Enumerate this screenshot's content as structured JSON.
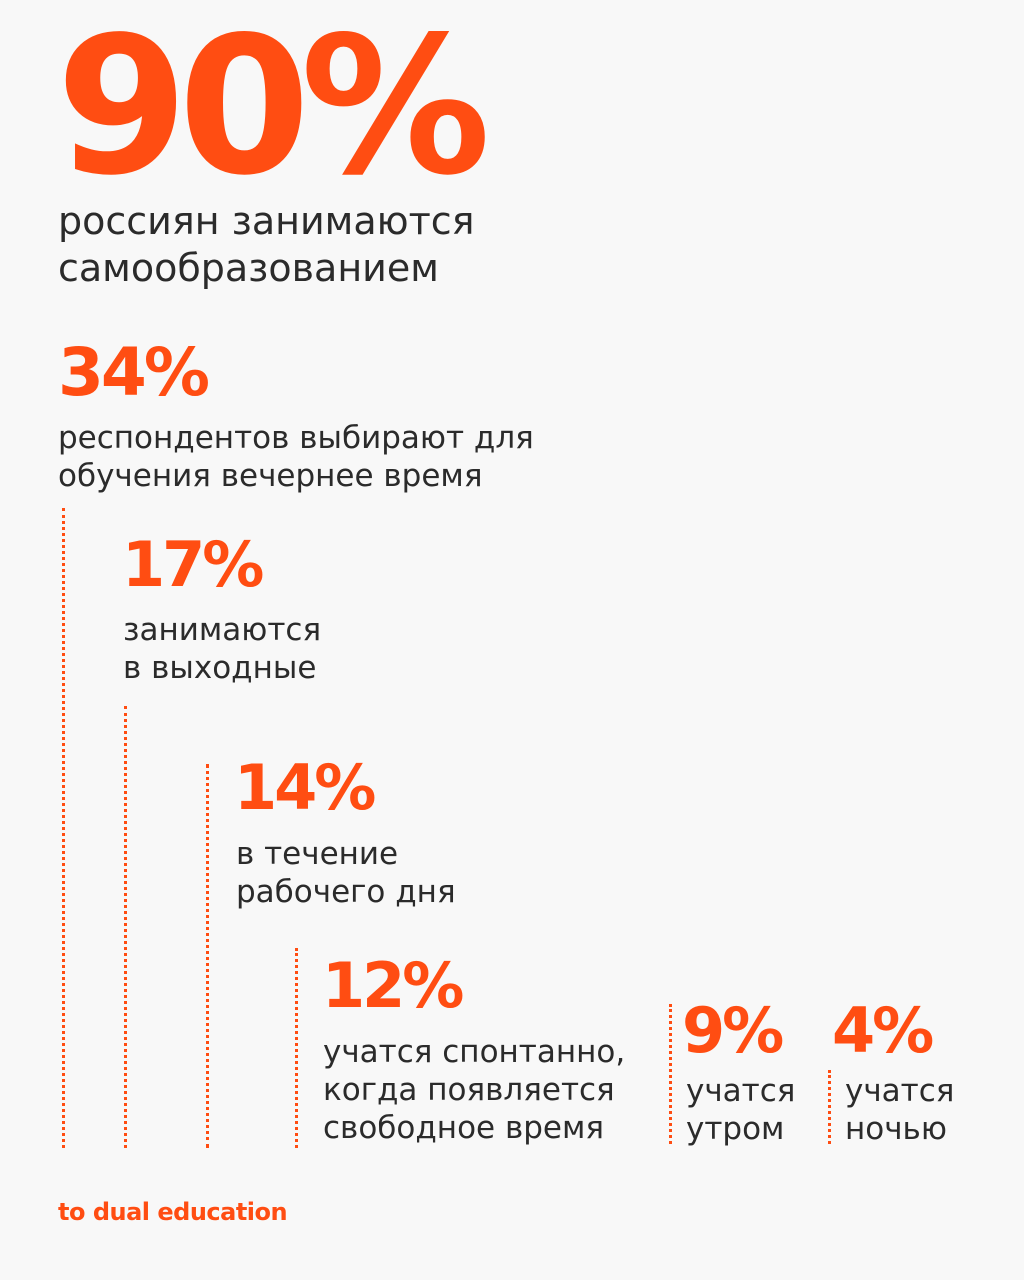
{
  "accent_color": "#ff4d12",
  "hero": {
    "value": "90%",
    "text_line1": "россиян занимаются",
    "text_line2": "самообразованием"
  },
  "stats": [
    {
      "value": "34%",
      "text_lines": [
        "респондентов выбирают для",
        "обучения вечернее время"
      ]
    },
    {
      "value": "17%",
      "text_lines": [
        "занимаются",
        "в выходные"
      ]
    },
    {
      "value": "14%",
      "text_lines": [
        "в течение",
        "рабочего дня"
      ]
    },
    {
      "value": "12%",
      "text_lines": [
        "учатся спонтанно,",
        "когда появляется",
        "свободное время"
      ]
    },
    {
      "value": "9%",
      "text_lines": [
        "учатся",
        "утром"
      ]
    },
    {
      "value": "4%",
      "text_lines": [
        "учатся",
        "ночью"
      ]
    }
  ],
  "footer": {
    "brand": "to dual education"
  }
}
